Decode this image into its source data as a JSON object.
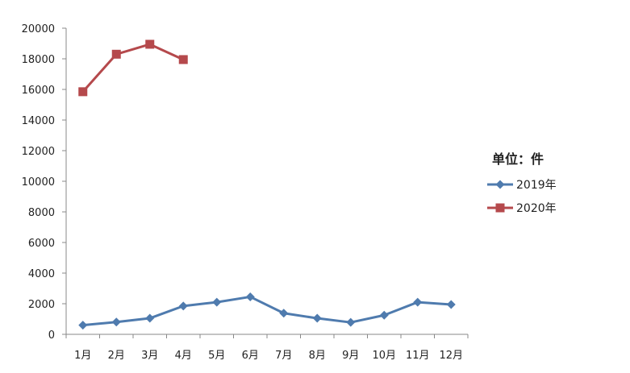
{
  "chart_data": {
    "type": "line",
    "title": "",
    "xlabel": "",
    "ylabel": "",
    "unit_label": "单位：件",
    "categories": [
      "1月",
      "2月",
      "3月",
      "4月",
      "5月",
      "6月",
      "7月",
      "8月",
      "9月",
      "10月",
      "11月",
      "12月"
    ],
    "ylim": [
      0,
      20000
    ],
    "yticks": [
      0,
      2000,
      4000,
      6000,
      8000,
      10000,
      12000,
      14000,
      16000,
      18000,
      20000
    ],
    "grid": false,
    "legend_position": "right",
    "series": [
      {
        "name": "2019年",
        "color": "#4f7bae",
        "marker": "diamond",
        "values": [
          600,
          800,
          1050,
          1850,
          2100,
          2450,
          1380,
          1050,
          780,
          1250,
          2100,
          1950
        ]
      },
      {
        "name": "2020年",
        "color": "#b5494c",
        "marker": "square",
        "values": [
          15850,
          18300,
          18950,
          17950,
          null,
          null,
          null,
          null,
          null,
          null,
          null,
          null
        ]
      }
    ]
  }
}
